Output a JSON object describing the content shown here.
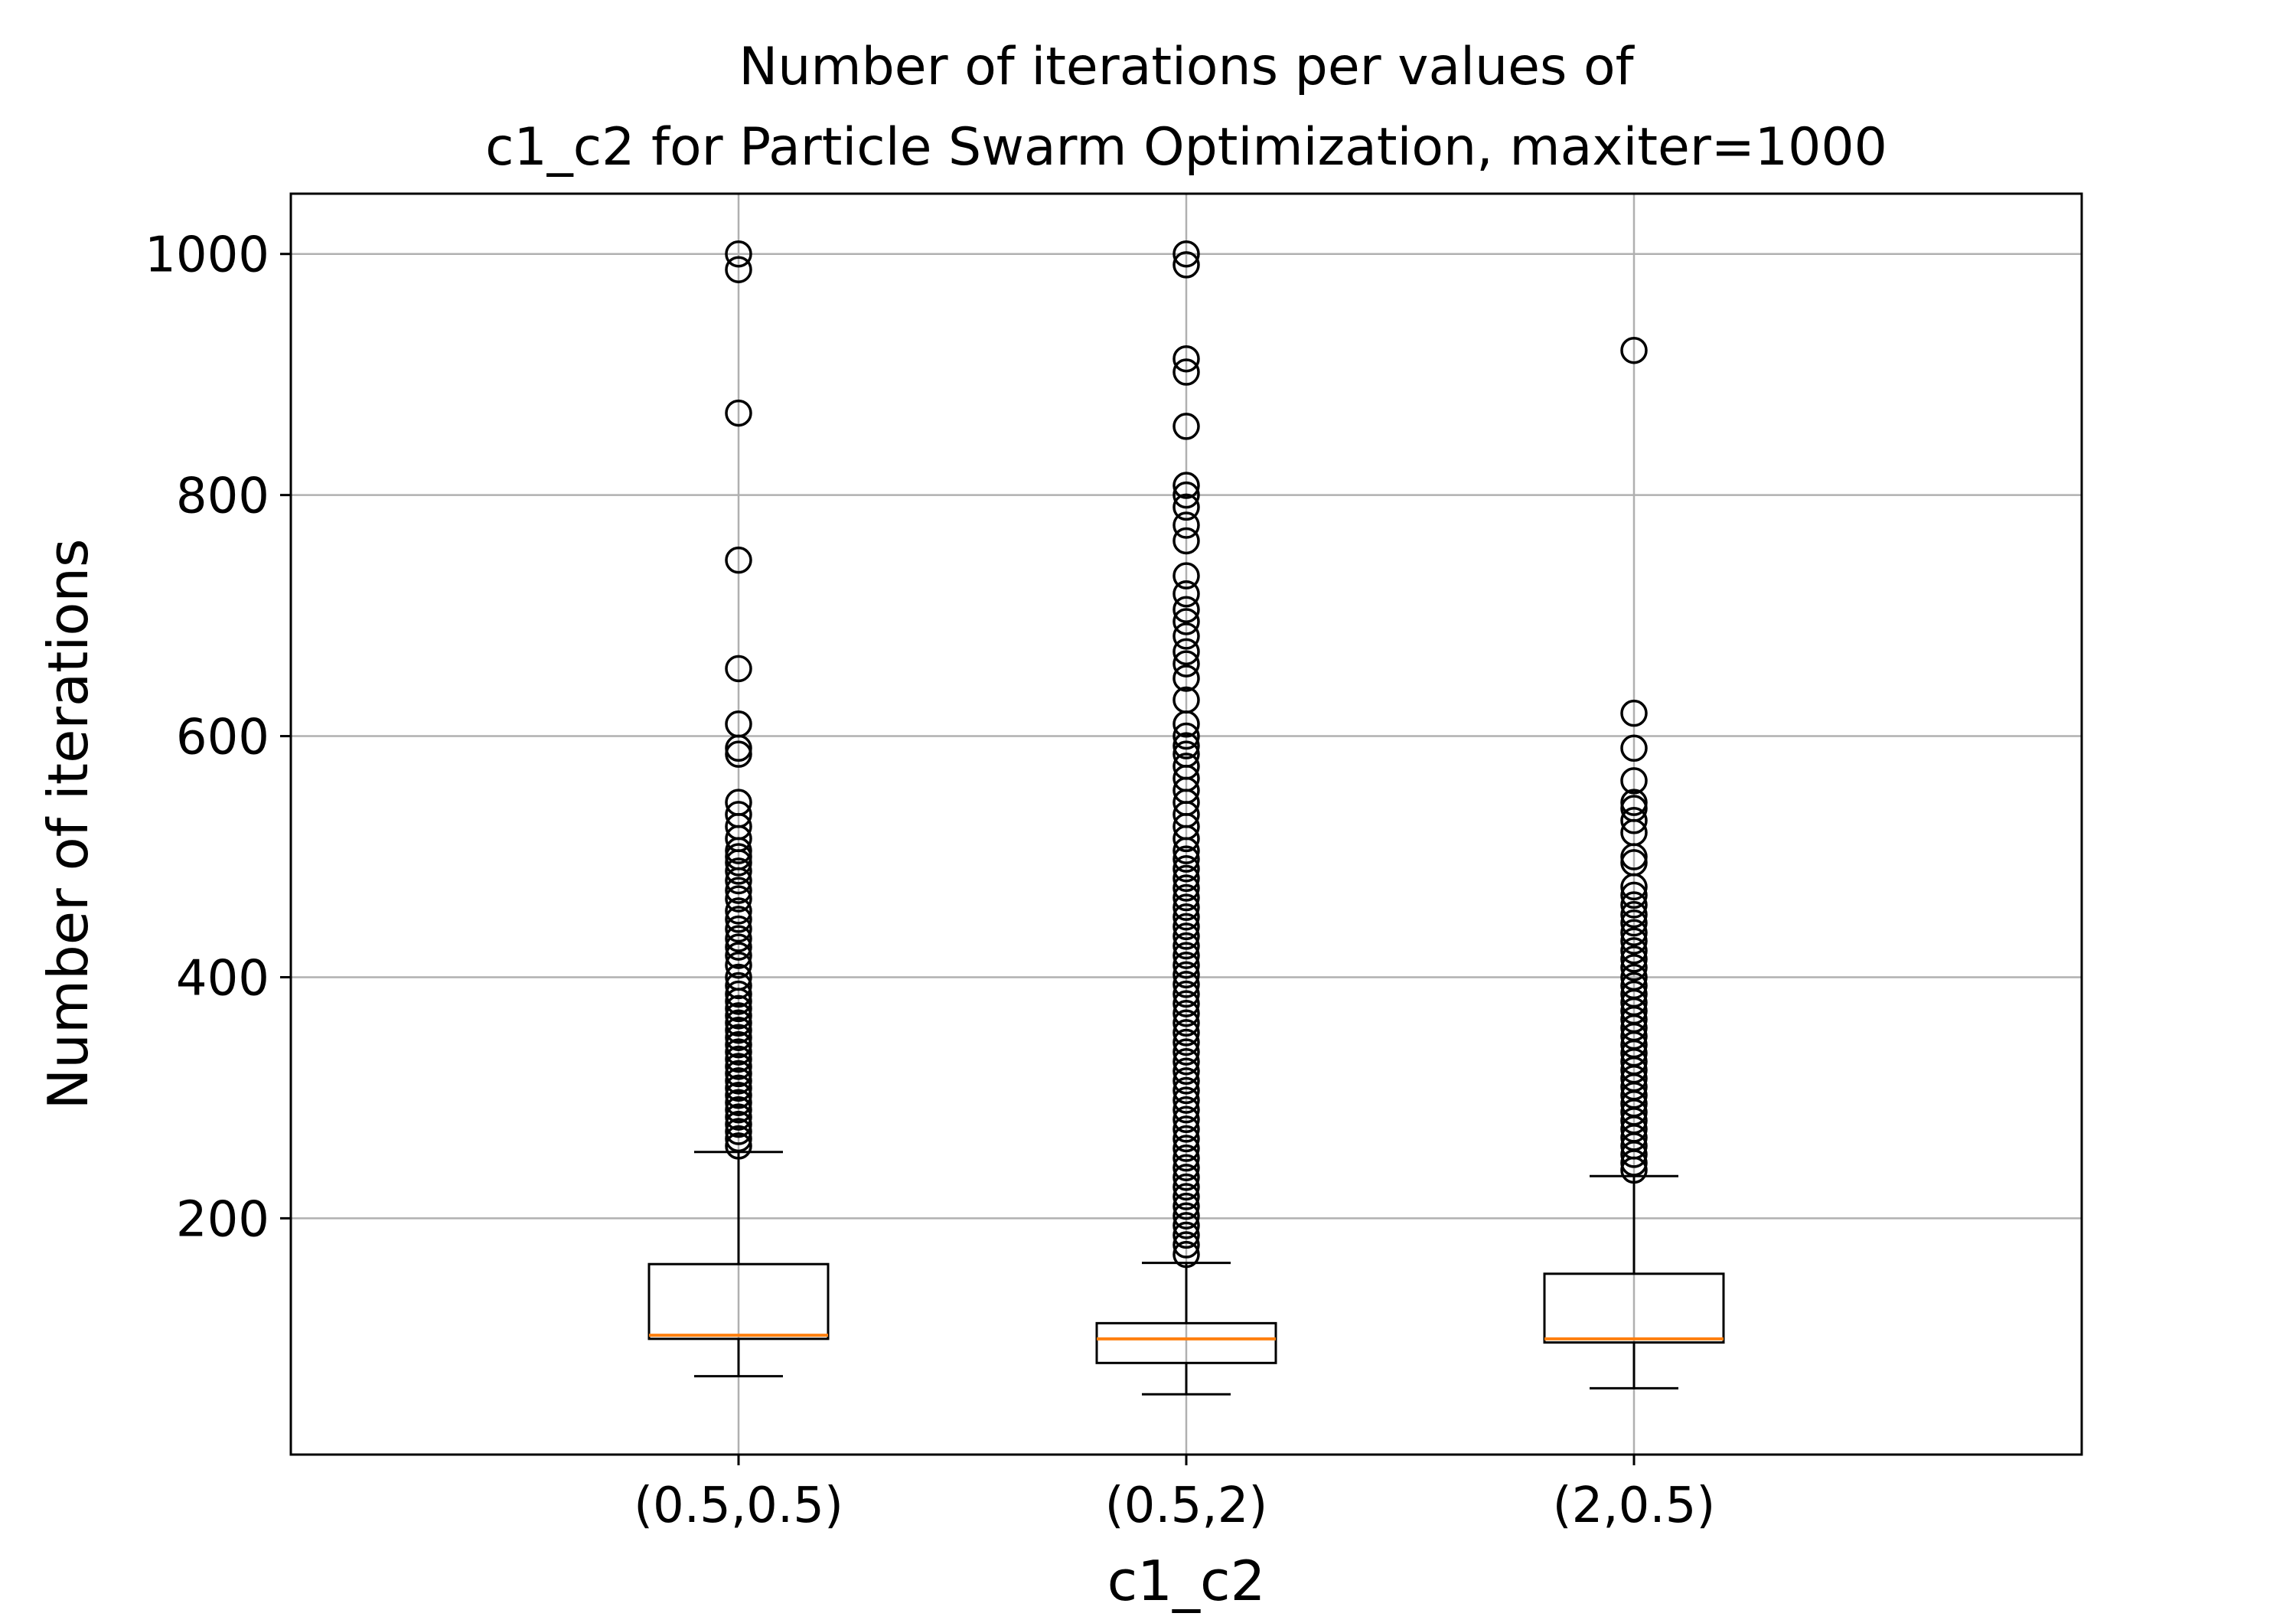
{
  "chart_data": {
    "type": "boxplot",
    "title": "Number of iterations per values of\nc1_c2 for Particle Swarm Optimization, maxiter=1000",
    "xlabel": "c1_c2",
    "ylabel": "Number of iterations",
    "ylim": [
      4,
      1050
    ],
    "yticks": [
      200,
      400,
      600,
      800,
      1000
    ],
    "grid": true,
    "categories": [
      "(0.5,0.5)",
      "(0.5,2)",
      "(2,0.5)"
    ],
    "boxes": [
      {
        "category": "(0.5,0.5)",
        "whisker_low": 69,
        "q1": 100,
        "median": 103,
        "q3": 162,
        "whisker_high": 255,
        "outliers": [
          1000,
          987,
          868,
          746,
          656,
          610,
          590,
          585,
          545,
          535,
          525,
          515,
          505,
          500,
          495,
          488,
          480,
          472,
          465,
          455,
          448,
          440,
          432,
          425,
          418,
          410,
          400,
          393,
          386,
          380,
          374,
          368,
          362,
          356,
          350,
          344,
          338,
          332,
          326,
          320,
          314,
          308,
          302,
          296,
          290,
          284,
          278,
          272,
          266,
          260
        ]
      },
      {
        "category": "(0.5,2)",
        "whisker_low": 54,
        "q1": 80,
        "median": 100,
        "q3": 113,
        "whisker_high": 163,
        "outliers": [
          1000,
          991,
          913,
          902,
          857,
          808,
          800,
          790,
          775,
          762,
          733,
          718,
          705,
          695,
          683,
          670,
          660,
          648,
          630,
          610,
          600,
          592,
          585,
          575,
          565,
          555,
          545,
          535,
          525,
          515,
          505,
          498,
          490,
          482,
          474,
          466,
          458,
          450,
          442,
          434,
          426,
          418,
          410,
          402,
          394,
          386,
          378,
          370,
          362,
          354,
          346,
          338,
          330,
          322,
          314,
          306,
          298,
          290,
          282,
          274,
          266,
          258,
          250,
          242,
          234,
          226,
          218,
          210,
          202,
          194,
          186,
          178,
          170
        ]
      },
      {
        "category": "(2,0.5)",
        "whisker_low": 59,
        "q1": 97,
        "median": 100,
        "q3": 154,
        "whisker_high": 235,
        "outliers": [
          920,
          619,
          590,
          563,
          545,
          540,
          530,
          520,
          500,
          495,
          475,
          468,
          460,
          452,
          445,
          437,
          430,
          422,
          415,
          408,
          400,
          393,
          386,
          379,
          372,
          365,
          358,
          351,
          344,
          337,
          330,
          323,
          316,
          309,
          302,
          295,
          288,
          281,
          274,
          267,
          260,
          253,
          246,
          240
        ]
      }
    ],
    "colors": {
      "box": "#000000",
      "median": "#ff7f0e",
      "grid": "#b0b0b0",
      "outlier_edge": "#000000"
    }
  }
}
